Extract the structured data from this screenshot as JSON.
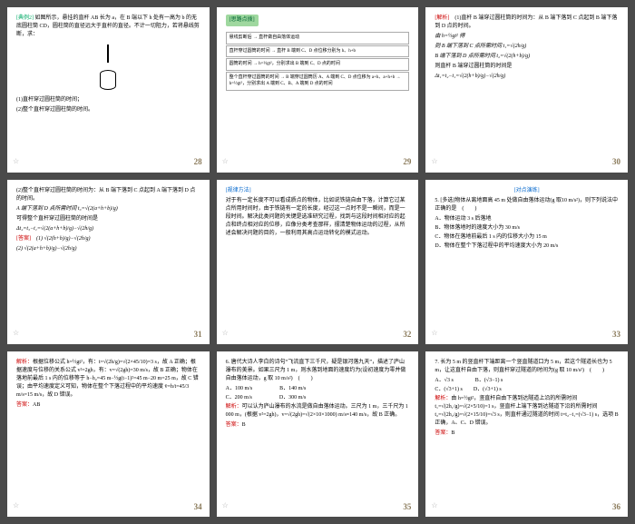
{
  "slides": [
    {
      "num": "28",
      "problem_label": "[典例2]",
      "body": "如图所示，悬挂的直杆 AB 长为 a，在 B 端以下 h 处有一高为 b 的无底圆柱筒 CD，圆柱筒的直径远大于直杆的直径。不计一切阻力，若将悬线剪断，求：",
      "q1": "(1)直杆穿过圆柱筒的时间；",
      "q2": "(2)整个直杆穿过圆柱筒的时间。"
    },
    {
      "num": "29",
      "heading": "[思路点拨]",
      "flow": [
        "悬线剪断后 → 直杆做自由落体运动",
        "直杆穿过圆筒的时间 → 直杆 B 端到 C、D 点位移分别为 h、h+b",
        "圆筒的时间 → h=½gt²，分别求出 B 端到 C、D 点的时间",
        "整个直杆穿过圆筒的时间 → B 端穿过圆筒历 A、A 端到 C、D 点位移为 a+h、a+h+b → h=½gt²，分别求出 A 端到 C、B、A 端到 D 点的时间"
      ]
    },
    {
      "num": "30",
      "label": "[解析]",
      "body": "(1)直杆 B 端穿过圆柱筒的时间为：从 B 端下落到 C 点起到 B 端下落到 D 点的时间。",
      "f1": "由 h=½gt² 得",
      "f2": "则 B 端下落到 C 点所需时间 t₁=√(2h/g)",
      "f3": "B 端下落到 D 点所需时间 t₂=√(2(h+b)/g)",
      "f4": "则直杆 B 端穿过圆柱筒的时间是",
      "f5": "Δt₁=t₂−t₁=√(2(h+b)/g)−√(2h/g)"
    },
    {
      "num": "31",
      "body": "(2)整个直杆穿过圆柱筒的时间为：从 B 端下落到 C 点起到 A 端下落到 D 点的时间。",
      "f1": "A 端下落到 D 点所需时间 t₃=√(2(a+h+b)/g)",
      "f2": "可得整个直杆穿过圆柱筒的时间是",
      "f3": "Δt₂=t₃−t₁=√(2(a+h+b)/g)−√(2h/g)",
      "ans_label": "[答案]",
      "ans1": "(1) √(2(h+b)/g)−√(2h/g)",
      "ans2": "(2) √(2(a+h+b)/g)−√(2h/g)"
    },
    {
      "num": "32",
      "label": "[规律方法]",
      "body": "对于有一定长度不可以看成质点的物体，比如说铁链自由下落，计算它过某点所用时间时，由于铁链有一定的长度，经过这一点时不是一瞬间，而是一段时间。解决此类问题的关键是选准研究过程，找到与这段时间相对应的起点和终点相对应的位移，应像分类考查那样，摆清楚物体运动的过程，从所述会解决问题的目的，一般利用其高点运动转化的模式运动。"
    },
    {
      "num": "33",
      "label": "[对点演练]",
      "qnum": "5.",
      "q": "[多选]物体从离地面高 45 m 处做自由落体运动(g 取10 m/s²)，则下列说法中正确的是",
      "blank": "(　　)",
      "choices": [
        "A．物体运动 3 s 后落地",
        "B．物体落地时的速度大小为 30 m/s",
        "C．物体在落地前最后 1 s 内的位移大小为 15 m",
        "D．物体在整个下落过程中的平均速度大小为 20 m/s"
      ]
    },
    {
      "num": "34",
      "label": "解析：",
      "body": "根据位移公式 h=½gt²，有：t=√(2h/g)=√(2×45/10)=3 s，故 A 正确；根据速度与位移的关系公式 v²=2gh，有：v=√(2gh)=30 m/s，故 B 正确；物体在落地前最后 1 s 内的位移等于 h−h₂=45 m−½g(t−1)²=45 m−20 m=25 m，故 C 错误；由平均速度定义可知，物体在整个下落过程中的平均速度 v̄=h/t=45/3 m/s=15 m/s，故 D 错误。",
      "ans_label": "答案：",
      "ans": "AB"
    },
    {
      "num": "35",
      "qnum": "6.",
      "q": "唐代大诗人李白的诗句“飞流直下三千尺，疑是银河落九天”，描述了庐山瀑布的美景。如果三尺为 1 m，则水落到地面的速度约为(设初速度为零并做自由落体运动，g 取 10 m/s²)",
      "blank": "(　　)",
      "choices": [
        "A．100 m/s　　　　　B．140 m/s",
        "C．200 m/s　　　　　D．300 m/s"
      ],
      "sol_label": "解析：",
      "sol": "可以认为庐山瀑布的水流是做自由落体运动。三尺为 1 m，三千尺为 1 000 m，(根据 v²=2gh)，v=√(2gh)=√(2×10×1000) m/s≈140 m/s，故 B 正确。",
      "ans_label": "答案：",
      "ans": "B"
    },
    {
      "num": "36",
      "qnum": "7.",
      "q": "长为 5 m 的竖直杆下端距离一个竖直隧道口为 5 m，若这个隧道长也为 5 m，让这直杆自由下落，则直杆穿过隧道的时间为(g 取 10 m/s²)",
      "blank": "(　　)",
      "choices": [
        "A．√3 s　　　　B．(√3−1) s",
        "C．(√3+1) s　　D．(√3+1) s"
      ],
      "sol_label": "解析：",
      "sol": "由 h=½gt²，竖直杆自由下落到达隧道上沿的所需时间 t₁=√(2h₁/g)=√(2×5/10)=1 s，竖直杆上端下落到达隧道下沿的所需时间 t₂=√(2h₂/g)=√(2×15/10)=√3 s，则直杆通过隧道的时间 t=t₂−t₁=(√3−1) s，选项 B 正确，A、C、D 错误。",
      "ans_label": "答案：",
      "ans": "B"
    }
  ]
}
